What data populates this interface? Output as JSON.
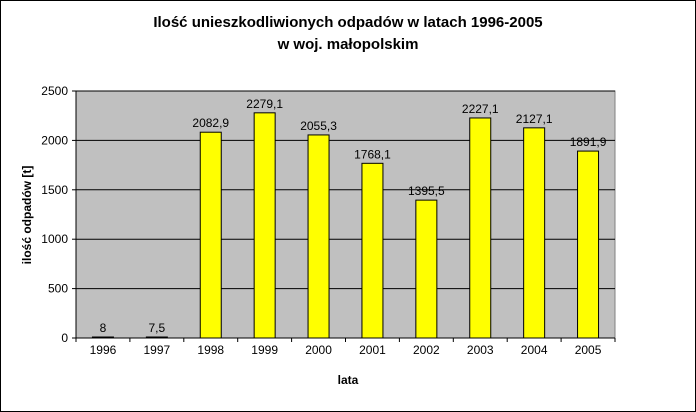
{
  "chart_data": {
    "type": "bar",
    "title": "Ilość unieszkodliwionych odpadów w latach 1996-2005",
    "subtitle": "w woj. małopolskim",
    "xlabel": "lata",
    "ylabel": "ilość odpadów [t]",
    "categories": [
      "1996",
      "1997",
      "1998",
      "1999",
      "2000",
      "2001",
      "2002",
      "2003",
      "2004",
      "2005"
    ],
    "values": [
      8,
      7.5,
      2082.9,
      2279.1,
      2055.3,
      1768.1,
      1395.5,
      2227.1,
      2127.1,
      1891.9
    ],
    "value_labels": [
      "8",
      "7,5",
      "2082,9",
      "2279,1",
      "2055,3",
      "1768,1",
      "1395,5",
      "2227,1",
      "2127,1",
      "1891,9"
    ],
    "y_ticks": [
      "0",
      "500",
      "1000",
      "1500",
      "2000",
      "2500"
    ],
    "ylim": [
      0,
      2500
    ],
    "grid": true,
    "legend": "none",
    "colors": {
      "bar": "#ffff00",
      "bar_edge": "#000000",
      "plot_bg": "#c0c0c0",
      "gridline": "#000000"
    }
  }
}
